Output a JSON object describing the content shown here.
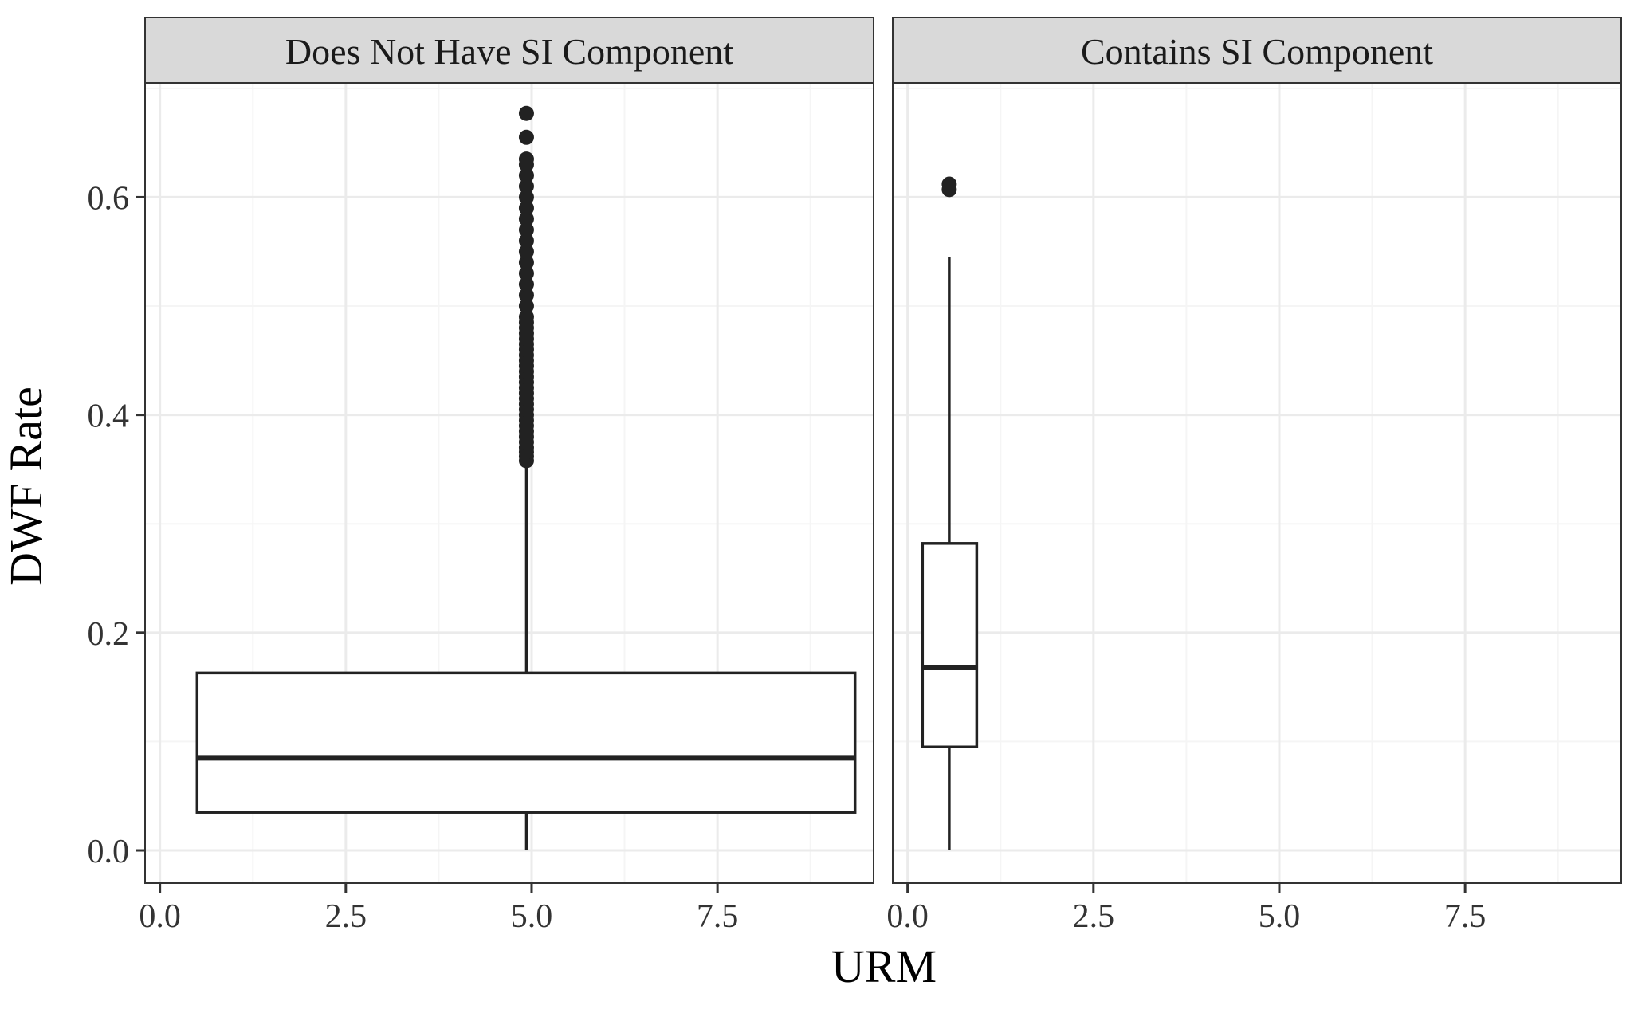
{
  "chart_data": {
    "type": "boxplot",
    "xlabel": "URM",
    "ylabel": "DWF Rate",
    "xlim": [
      -0.2,
      9.6
    ],
    "ylim": [
      -0.03,
      0.705
    ],
    "x_ticks": [
      "0.0",
      "2.5",
      "5.0",
      "7.5"
    ],
    "x_tick_values": [
      0,
      2.5,
      5,
      7.5
    ],
    "y_ticks": [
      "0.0",
      "0.2",
      "0.4",
      "0.6"
    ],
    "y_tick_values": [
      0,
      0.2,
      0.4,
      0.6
    ],
    "grid": true,
    "legend": "none",
    "panels": [
      {
        "name": "Does Not Have SI Component",
        "box": {
          "x_min": 0.5,
          "x_max": 9.35,
          "whisker_x": 4.93,
          "whisker_low": 0.0,
          "q1": 0.035,
          "median": 0.085,
          "q3": 0.163,
          "whisker_high": 0.355
        },
        "outliers": [
          0.358,
          0.362,
          0.366,
          0.37,
          0.375,
          0.38,
          0.385,
          0.39,
          0.395,
          0.4,
          0.405,
          0.41,
          0.415,
          0.42,
          0.425,
          0.43,
          0.435,
          0.44,
          0.445,
          0.45,
          0.455,
          0.46,
          0.465,
          0.47,
          0.475,
          0.48,
          0.485,
          0.49,
          0.5,
          0.51,
          0.52,
          0.53,
          0.54,
          0.55,
          0.56,
          0.57,
          0.58,
          0.59,
          0.6,
          0.61,
          0.62,
          0.63,
          0.635,
          0.655,
          0.677
        ]
      },
      {
        "name": "Contains SI Component",
        "box": {
          "x_min": 0.2,
          "x_max": 0.93,
          "whisker_x": 0.56,
          "whisker_low": 0.0,
          "q1": 0.095,
          "median": 0.168,
          "q3": 0.282,
          "whisker_high": 0.545
        },
        "outliers": [
          0.607,
          0.612
        ]
      }
    ]
  },
  "colors": {
    "strip_fill": "#d9d9d9",
    "grid_major": "#ebebeb",
    "grid_minor": "#f5f5f5",
    "ink": "#222222"
  }
}
